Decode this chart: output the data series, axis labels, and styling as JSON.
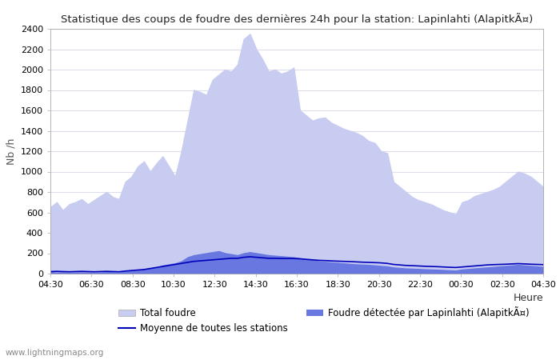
{
  "title": "Statistique des coups de foudre des dernières 24h pour la station: Lapinlahti (AlapitkÃ¤)",
  "ylabel": "Nb /h",
  "xlabel": "Heure",
  "watermark": "www.lightningmaps.org",
  "legend_total": "Total foudre",
  "legend_station": "Foudre détectée par Lapinlahti (AlapitkÃ¤)",
  "legend_moyenne": "Moyenne de toutes les stations",
  "color_total": "#c8ccf0",
  "color_station": "#6878e0",
  "color_moyenne": "#0000bb",
  "ylim": [
    0,
    2400
  ],
  "yticks": [
    0,
    200,
    400,
    600,
    800,
    1000,
    1200,
    1400,
    1600,
    1800,
    2000,
    2200,
    2400
  ],
  "x_labels": [
    "04:30",
    "06:30",
    "08:30",
    "10:30",
    "12:30",
    "14:30",
    "16:30",
    "18:30",
    "20:30",
    "22:30",
    "00:30",
    "02:30",
    "04:30"
  ],
  "total_foudre": [
    650,
    700,
    620,
    680,
    700,
    730,
    680,
    720,
    760,
    800,
    750,
    730,
    900,
    950,
    1050,
    1100,
    1000,
    1080,
    1150,
    1050,
    950,
    1200,
    1500,
    1800,
    1780,
    1750,
    1900,
    1950,
    2000,
    1980,
    2050,
    2300,
    2350,
    2200,
    2100,
    1980,
    2000,
    1960,
    1980,
    2020,
    1600,
    1550,
    1500,
    1520,
    1530,
    1480,
    1450,
    1420,
    1400,
    1380,
    1350,
    1300,
    1280,
    1200,
    1180,
    900,
    850,
    800,
    750,
    720,
    700,
    680,
    650,
    620,
    600,
    580,
    700,
    720,
    760,
    780,
    800,
    820,
    850,
    900,
    950,
    1000,
    980,
    950,
    900,
    850
  ],
  "station_foudre": [
    15,
    10,
    12,
    8,
    10,
    12,
    10,
    8,
    10,
    15,
    12,
    10,
    20,
    25,
    30,
    40,
    50,
    60,
    80,
    90,
    100,
    120,
    160,
    180,
    190,
    200,
    210,
    220,
    200,
    190,
    180,
    200,
    210,
    200,
    190,
    180,
    175,
    170,
    165,
    160,
    150,
    140,
    130,
    120,
    115,
    110,
    105,
    100,
    95,
    90,
    88,
    85,
    80,
    75,
    70,
    60,
    55,
    50,
    48,
    45,
    42,
    40,
    38,
    35,
    32,
    30,
    40,
    45,
    50,
    55,
    60,
    65,
    70,
    75,
    80,
    85,
    80,
    75,
    70,
    65
  ],
  "moyenne": [
    20,
    22,
    20,
    18,
    20,
    22,
    20,
    18,
    20,
    22,
    20,
    18,
    25,
    30,
    35,
    40,
    50,
    60,
    70,
    80,
    90,
    100,
    110,
    120,
    125,
    130,
    135,
    140,
    145,
    150,
    150,
    160,
    165,
    160,
    155,
    150,
    150,
    148,
    148,
    148,
    145,
    140,
    135,
    130,
    128,
    125,
    122,
    120,
    118,
    115,
    112,
    110,
    108,
    105,
    100,
    90,
    85,
    80,
    78,
    75,
    72,
    70,
    68,
    65,
    62,
    60,
    65,
    70,
    75,
    80,
    85,
    88,
    90,
    92,
    95,
    98,
    95,
    92,
    90,
    88
  ]
}
